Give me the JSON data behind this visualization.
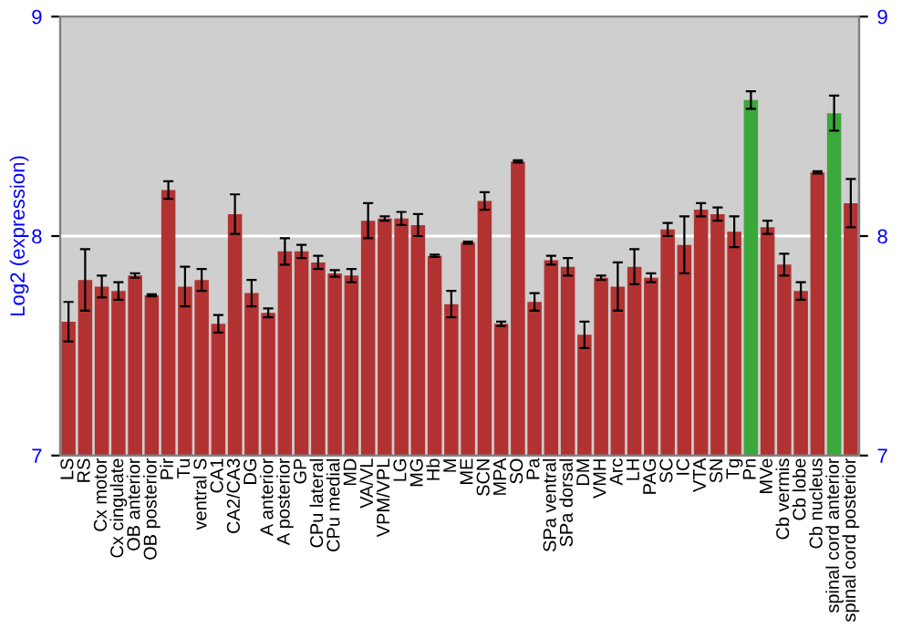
{
  "chart_data": {
    "type": "bar",
    "ylabel": "Log2 (expression)",
    "categories": [
      "LS",
      "RS",
      "Cx motor",
      "Cx cingulate",
      "OB anterior",
      "OB posterior",
      "Pir",
      "Tu",
      "ventral S",
      "CA1",
      "CA2/CA3",
      "DG",
      "A anterior",
      "A posterior",
      "GP",
      "CPu lateral",
      "CPu medial",
      "MD",
      "VA/VL",
      "VPM/VPL",
      "LG",
      "MG",
      "Hb",
      "M",
      "ME",
      "SCN",
      "MPA",
      "SO",
      "Pa",
      "SPa ventral",
      "SPa dorsal",
      "DM",
      "VMH",
      "Arc",
      "LH",
      "PAG",
      "SC",
      "IC",
      "VTA",
      "SN",
      "Tg",
      "Pn",
      "MVe",
      "Cb vermis",
      "Cb lobe",
      "Cb nucleus",
      "spinal cord anterior",
      "spinal cord posterior"
    ],
    "values": [
      7.61,
      7.8,
      7.77,
      7.75,
      7.82,
      7.73,
      8.21,
      7.77,
      7.8,
      7.6,
      8.1,
      7.74,
      7.65,
      7.93,
      7.93,
      7.88,
      7.83,
      7.82,
      8.07,
      8.08,
      8.08,
      8.05,
      7.91,
      7.69,
      7.97,
      8.16,
      7.6,
      8.34,
      7.7,
      7.89,
      7.86,
      7.55,
      7.81,
      7.77,
      7.86,
      7.81,
      8.03,
      7.96,
      8.12,
      8.1,
      8.02,
      8.62,
      8.04,
      7.87,
      7.75,
      8.29,
      8.56,
      8.15
    ],
    "errors": [
      0.09,
      0.14,
      0.05,
      0.04,
      0.01,
      0.005,
      0.04,
      0.09,
      0.05,
      0.04,
      0.09,
      0.06,
      0.02,
      0.06,
      0.03,
      0.03,
      0.015,
      0.03,
      0.08,
      0.01,
      0.03,
      0.05,
      0.005,
      0.06,
      0.005,
      0.04,
      0.01,
      0.005,
      0.04,
      0.02,
      0.04,
      0.06,
      0.01,
      0.11,
      0.08,
      0.02,
      0.03,
      0.13,
      0.03,
      0.03,
      0.07,
      0.04,
      0.03,
      0.05,
      0.04,
      0.005,
      0.08,
      0.11
    ],
    "colors": [
      "#b23232",
      "#b23232",
      "#b23232",
      "#b23232",
      "#b23232",
      "#b23232",
      "#b23232",
      "#b23232",
      "#b23232",
      "#b23232",
      "#b23232",
      "#b23232",
      "#b23232",
      "#b23232",
      "#b23232",
      "#b23232",
      "#b23232",
      "#b23232",
      "#b23232",
      "#b23232",
      "#b23232",
      "#b23232",
      "#b23232",
      "#b23232",
      "#b23232",
      "#b23232",
      "#b23232",
      "#b23232",
      "#b23232",
      "#b23232",
      "#b23232",
      "#b23232",
      "#b23232",
      "#b23232",
      "#b23232",
      "#b23232",
      "#b23232",
      "#b23232",
      "#b23232",
      "#b23232",
      "#b23232",
      "#3aa83a",
      "#b23232",
      "#b23232",
      "#b23232",
      "#b23232",
      "#3aa83a",
      "#b23232"
    ],
    "ylim": [
      7,
      9
    ],
    "yticks": [
      7,
      8,
      9
    ],
    "y2lim": [
      7,
      9
    ],
    "y2ticks": [
      7,
      8,
      9
    ],
    "grid": "y"
  }
}
